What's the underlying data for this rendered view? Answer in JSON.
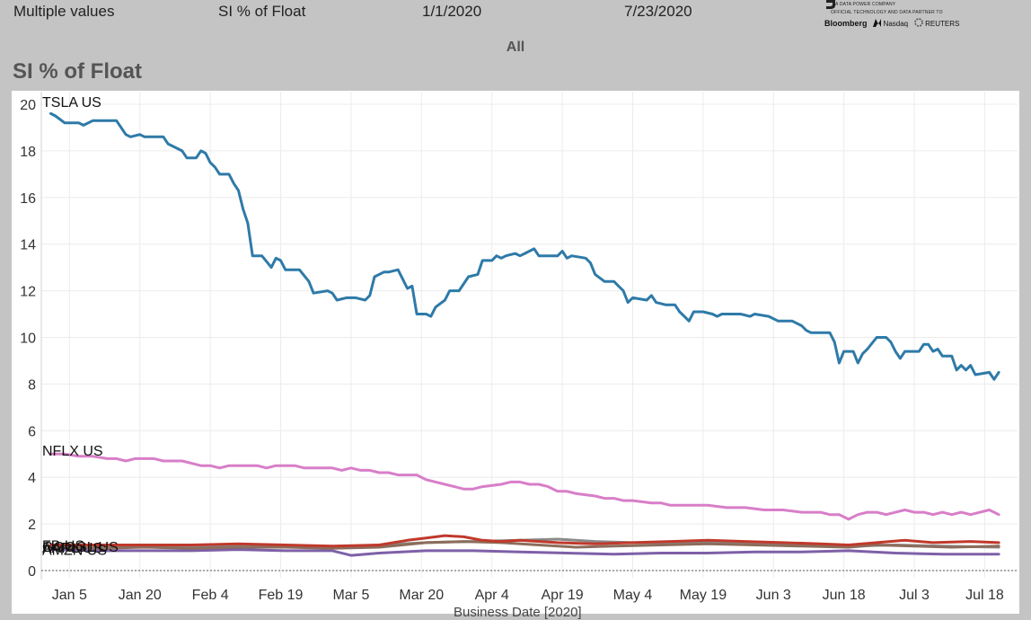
{
  "filters": {
    "values": [
      "Multiple values",
      "SI % of Float",
      "1/1/2020",
      "7/23/2020"
    ]
  },
  "logo": {
    "tagline": "A DATA POWER COMPANY",
    "partner_text": "OFFICIAL TECHNOLOGY AND DATA PARTNER TO",
    "partners": [
      "Bloomberg",
      "Nasdaq",
      "REUTERS"
    ]
  },
  "selector_label": "All",
  "chart_data": {
    "type": "line",
    "title": "SI % of Float",
    "xlabel": "Business Date [2020]",
    "ylabel": "",
    "ylim": [
      0,
      20
    ],
    "y_ticks": [
      0,
      2,
      4,
      6,
      8,
      10,
      12,
      14,
      16,
      18,
      20
    ],
    "x_tick_labels": [
      "Jan 5",
      "Jan 20",
      "Feb 4",
      "Feb 19",
      "Mar 5",
      "Mar 20",
      "Apr 4",
      "Apr 19",
      "May 4",
      "May 19",
      "Jun 3",
      "Jun 18",
      "Jul 3",
      "Jul 18"
    ],
    "x_tick_days": [
      4,
      19,
      34,
      49,
      64,
      79,
      94,
      109,
      124,
      139,
      154,
      169,
      184,
      199
    ],
    "x_range_days": [
      -2,
      206
    ],
    "grid": true,
    "legend": "labels at line start",
    "series": [
      {
        "name": "TSLA US",
        "color": "#2e7aa8",
        "points": [
          [
            0,
            19.6
          ],
          [
            1,
            19.5
          ],
          [
            3,
            19.2
          ],
          [
            6,
            19.2
          ],
          [
            7,
            19.1
          ],
          [
            9,
            19.3
          ],
          [
            14,
            19.3
          ],
          [
            16,
            18.7
          ],
          [
            17,
            18.6
          ],
          [
            19,
            18.7
          ],
          [
            20,
            18.6
          ],
          [
            24,
            18.6
          ],
          [
            25,
            18.3
          ],
          [
            28,
            18.0
          ],
          [
            29,
            17.7
          ],
          [
            31,
            17.7
          ],
          [
            32,
            18.0
          ],
          [
            33,
            17.9
          ],
          [
            34,
            17.5
          ],
          [
            35,
            17.3
          ],
          [
            36,
            17.0
          ],
          [
            38,
            17.0
          ],
          [
            39,
            16.6
          ],
          [
            40,
            16.3
          ],
          [
            41,
            15.5
          ],
          [
            42,
            14.9
          ],
          [
            43,
            13.5
          ],
          [
            45,
            13.5
          ],
          [
            47,
            13.0
          ],
          [
            48,
            13.4
          ],
          [
            49,
            13.3
          ],
          [
            50,
            12.9
          ],
          [
            53,
            12.9
          ],
          [
            55,
            12.4
          ],
          [
            56,
            11.9
          ],
          [
            59,
            12.0
          ],
          [
            60,
            11.9
          ],
          [
            61,
            11.6
          ],
          [
            63,
            11.7
          ],
          [
            65,
            11.7
          ],
          [
            67,
            11.6
          ],
          [
            68,
            11.8
          ],
          [
            69,
            12.6
          ],
          [
            71,
            12.8
          ],
          [
            72,
            12.8
          ],
          [
            74,
            12.9
          ],
          [
            75,
            12.5
          ],
          [
            76,
            12.1
          ],
          [
            77,
            12.2
          ],
          [
            78,
            11.0
          ],
          [
            80,
            11.0
          ],
          [
            81,
            10.9
          ],
          [
            82,
            11.3
          ],
          [
            84,
            11.6
          ],
          [
            85,
            12.0
          ],
          [
            87,
            12.0
          ],
          [
            89,
            12.6
          ],
          [
            91,
            12.7
          ],
          [
            92,
            13.3
          ],
          [
            94,
            13.3
          ],
          [
            95,
            13.5
          ],
          [
            96,
            13.4
          ],
          [
            97,
            13.5
          ],
          [
            99,
            13.6
          ],
          [
            100,
            13.5
          ],
          [
            101,
            13.6
          ],
          [
            103,
            13.8
          ],
          [
            104,
            13.5
          ],
          [
            108,
            13.5
          ],
          [
            109,
            13.7
          ],
          [
            110,
            13.4
          ],
          [
            111,
            13.5
          ],
          [
            114,
            13.4
          ],
          [
            115,
            13.2
          ],
          [
            116,
            12.7
          ],
          [
            118,
            12.4
          ],
          [
            120,
            12.4
          ],
          [
            121,
            12.2
          ],
          [
            122,
            12.0
          ],
          [
            123,
            11.5
          ],
          [
            124,
            11.7
          ],
          [
            127,
            11.6
          ],
          [
            128,
            11.8
          ],
          [
            129,
            11.5
          ],
          [
            131,
            11.4
          ],
          [
            133,
            11.4
          ],
          [
            134,
            11.1
          ],
          [
            135,
            10.9
          ],
          [
            136,
            10.7
          ],
          [
            137,
            11.1
          ],
          [
            139,
            11.1
          ],
          [
            141,
            11.0
          ],
          [
            142,
            10.9
          ],
          [
            143,
            11.0
          ],
          [
            146,
            11.0
          ],
          [
            147,
            11.0
          ],
          [
            149,
            10.9
          ],
          [
            150,
            11.0
          ],
          [
            153,
            10.9
          ],
          [
            155,
            10.7
          ],
          [
            158,
            10.7
          ],
          [
            160,
            10.5
          ],
          [
            161,
            10.3
          ],
          [
            162,
            10.2
          ],
          [
            166,
            10.2
          ],
          [
            167,
            9.8
          ],
          [
            168,
            8.9
          ],
          [
            169,
            9.4
          ],
          [
            171,
            9.4
          ],
          [
            172,
            8.9
          ],
          [
            173,
            9.3
          ],
          [
            174,
            9.5
          ],
          [
            176,
            10.0
          ],
          [
            178,
            10.0
          ],
          [
            179,
            9.8
          ],
          [
            180,
            9.4
          ],
          [
            181,
            9.1
          ],
          [
            182,
            9.4
          ],
          [
            185,
            9.4
          ],
          [
            186,
            9.7
          ],
          [
            187,
            9.7
          ],
          [
            188,
            9.4
          ],
          [
            189,
            9.5
          ],
          [
            190,
            9.2
          ],
          [
            192,
            9.2
          ],
          [
            193,
            8.6
          ],
          [
            194,
            8.8
          ],
          [
            195,
            8.6
          ],
          [
            196,
            8.8
          ],
          [
            197,
            8.4
          ],
          [
            200,
            8.5
          ],
          [
            201,
            8.2
          ],
          [
            202,
            8.5
          ]
        ]
      },
      {
        "name": "NFLX US",
        "color": "#d87ec8",
        "points": [
          [
            0,
            5.0
          ],
          [
            3,
            5.0
          ],
          [
            6,
            4.9
          ],
          [
            9,
            4.9
          ],
          [
            12,
            4.8
          ],
          [
            14,
            4.8
          ],
          [
            16,
            4.7
          ],
          [
            18,
            4.8
          ],
          [
            22,
            4.8
          ],
          [
            24,
            4.7
          ],
          [
            28,
            4.7
          ],
          [
            30,
            4.6
          ],
          [
            32,
            4.5
          ],
          [
            34,
            4.5
          ],
          [
            36,
            4.4
          ],
          [
            38,
            4.5
          ],
          [
            44,
            4.5
          ],
          [
            46,
            4.4
          ],
          [
            48,
            4.5
          ],
          [
            52,
            4.5
          ],
          [
            54,
            4.4
          ],
          [
            58,
            4.4
          ],
          [
            60,
            4.4
          ],
          [
            62,
            4.3
          ],
          [
            64,
            4.4
          ],
          [
            66,
            4.3
          ],
          [
            68,
            4.3
          ],
          [
            70,
            4.2
          ],
          [
            72,
            4.2
          ],
          [
            74,
            4.1
          ],
          [
            76,
            4.1
          ],
          [
            78,
            4.1
          ],
          [
            80,
            3.9
          ],
          [
            82,
            3.8
          ],
          [
            84,
            3.7
          ],
          [
            86,
            3.6
          ],
          [
            88,
            3.5
          ],
          [
            90,
            3.5
          ],
          [
            92,
            3.6
          ],
          [
            96,
            3.7
          ],
          [
            98,
            3.8
          ],
          [
            100,
            3.8
          ],
          [
            102,
            3.7
          ],
          [
            104,
            3.7
          ],
          [
            106,
            3.6
          ],
          [
            108,
            3.4
          ],
          [
            110,
            3.4
          ],
          [
            112,
            3.3
          ],
          [
            116,
            3.2
          ],
          [
            118,
            3.1
          ],
          [
            120,
            3.1
          ],
          [
            122,
            3.0
          ],
          [
            124,
            3.0
          ],
          [
            128,
            2.9
          ],
          [
            130,
            2.9
          ],
          [
            132,
            2.8
          ],
          [
            136,
            2.8
          ],
          [
            140,
            2.8
          ],
          [
            144,
            2.7
          ],
          [
            148,
            2.7
          ],
          [
            152,
            2.6
          ],
          [
            156,
            2.6
          ],
          [
            160,
            2.5
          ],
          [
            164,
            2.5
          ],
          [
            166,
            2.4
          ],
          [
            168,
            2.4
          ],
          [
            170,
            2.2
          ],
          [
            172,
            2.4
          ],
          [
            174,
            2.5
          ],
          [
            176,
            2.5
          ],
          [
            178,
            2.4
          ],
          [
            180,
            2.5
          ],
          [
            182,
            2.6
          ],
          [
            184,
            2.5
          ],
          [
            186,
            2.5
          ],
          [
            188,
            2.4
          ],
          [
            190,
            2.5
          ],
          [
            192,
            2.4
          ],
          [
            194,
            2.5
          ],
          [
            196,
            2.4
          ],
          [
            198,
            2.5
          ],
          [
            200,
            2.6
          ],
          [
            202,
            2.4
          ]
        ]
      },
      {
        "name": "FB US",
        "color": "#c0392b",
        "points": [
          [
            0,
            1.1
          ],
          [
            10,
            1.1
          ],
          [
            20,
            1.1
          ],
          [
            30,
            1.1
          ],
          [
            40,
            1.15
          ],
          [
            50,
            1.1
          ],
          [
            60,
            1.05
          ],
          [
            70,
            1.1
          ],
          [
            76,
            1.3
          ],
          [
            80,
            1.4
          ],
          [
            84,
            1.5
          ],
          [
            88,
            1.45
          ],
          [
            92,
            1.3
          ],
          [
            96,
            1.25
          ],
          [
            100,
            1.3
          ],
          [
            108,
            1.2
          ],
          [
            116,
            1.15
          ],
          [
            124,
            1.2
          ],
          [
            132,
            1.25
          ],
          [
            140,
            1.3
          ],
          [
            148,
            1.25
          ],
          [
            156,
            1.2
          ],
          [
            164,
            1.15
          ],
          [
            170,
            1.1
          ],
          [
            176,
            1.2
          ],
          [
            182,
            1.3
          ],
          [
            188,
            1.2
          ],
          [
            196,
            1.25
          ],
          [
            202,
            1.2
          ]
        ]
      },
      {
        "name": "AAPL US",
        "color": "#8c6d5c",
        "points": [
          [
            0,
            1.0
          ],
          [
            10,
            0.95
          ],
          [
            20,
            1.0
          ],
          [
            30,
            0.95
          ],
          [
            40,
            1.0
          ],
          [
            50,
            1.0
          ],
          [
            60,
            0.95
          ],
          [
            70,
            1.0
          ],
          [
            80,
            1.2
          ],
          [
            88,
            1.25
          ],
          [
            96,
            1.2
          ],
          [
            104,
            1.1
          ],
          [
            112,
            1.0
          ],
          [
            120,
            1.05
          ],
          [
            130,
            1.1
          ],
          [
            140,
            1.15
          ],
          [
            150,
            1.1
          ],
          [
            160,
            1.05
          ],
          [
            170,
            1.0
          ],
          [
            176,
            1.1
          ],
          [
            184,
            1.05
          ],
          [
            192,
            1.0
          ],
          [
            202,
            1.05
          ]
        ]
      },
      {
        "name": "GOOGL US",
        "color": "#8a8a8a",
        "points": [
          [
            0,
            1.05
          ],
          [
            10,
            1.05
          ],
          [
            20,
            1.1
          ],
          [
            30,
            1.05
          ],
          [
            40,
            1.1
          ],
          [
            50,
            1.05
          ],
          [
            60,
            1.0
          ],
          [
            70,
            1.1
          ],
          [
            80,
            1.2
          ],
          [
            90,
            1.25
          ],
          [
            100,
            1.3
          ],
          [
            108,
            1.35
          ],
          [
            116,
            1.25
          ],
          [
            124,
            1.2
          ],
          [
            132,
            1.2
          ],
          [
            140,
            1.2
          ],
          [
            150,
            1.15
          ],
          [
            160,
            1.1
          ],
          [
            170,
            1.05
          ],
          [
            180,
            1.1
          ],
          [
            190,
            1.05
          ],
          [
            202,
            1.0
          ]
        ]
      },
      {
        "name": "AMZN US",
        "color": "#7e60a8",
        "points": [
          [
            0,
            0.9
          ],
          [
            10,
            0.85
          ],
          [
            20,
            0.85
          ],
          [
            30,
            0.85
          ],
          [
            40,
            0.9
          ],
          [
            50,
            0.85
          ],
          [
            60,
            0.85
          ],
          [
            64,
            0.65
          ],
          [
            70,
            0.75
          ],
          [
            80,
            0.85
          ],
          [
            90,
            0.85
          ],
          [
            100,
            0.8
          ],
          [
            110,
            0.75
          ],
          [
            120,
            0.7
          ],
          [
            130,
            0.75
          ],
          [
            140,
            0.75
          ],
          [
            150,
            0.8
          ],
          [
            160,
            0.8
          ],
          [
            170,
            0.85
          ],
          [
            180,
            0.75
          ],
          [
            190,
            0.7
          ],
          [
            202,
            0.7
          ]
        ]
      }
    ]
  }
}
